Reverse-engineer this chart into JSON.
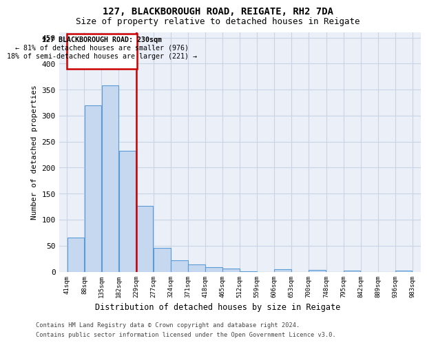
{
  "title1": "127, BLACKBOROUGH ROAD, REIGATE, RH2 7DA",
  "title2": "Size of property relative to detached houses in Reigate",
  "xlabel": "Distribution of detached houses by size in Reigate",
  "ylabel": "Number of detached properties",
  "bar_values": [
    65,
    320,
    358,
    232,
    127,
    46,
    22,
    14,
    9,
    6,
    1,
    0,
    4,
    0,
    3,
    0,
    2,
    0,
    0,
    2
  ],
  "bar_labels": [
    "41sqm",
    "88sqm",
    "135sqm",
    "182sqm",
    "229sqm",
    "277sqm",
    "324sqm",
    "371sqm",
    "418sqm",
    "465sqm",
    "512sqm",
    "559sqm",
    "606sqm",
    "653sqm",
    "700sqm",
    "748sqm",
    "795sqm",
    "842sqm",
    "889sqm",
    "936sqm",
    "983sqm"
  ],
  "bar_color": "#c5d8f0",
  "bar_edge_color": "#5b9bd5",
  "vline_x": 230,
  "vline_color": "#cc0000",
  "annotation_line1": "127 BLACKBOROUGH ROAD: 230sqm",
  "annotation_line2": "← 81% of detached houses are smaller (976)",
  "annotation_line3": "18% of semi-detached houses are larger (221) →",
  "annotation_box_edgecolor": "#cc0000",
  "ylim_max": 460,
  "yticks": [
    0,
    50,
    100,
    150,
    200,
    250,
    300,
    350,
    400,
    450
  ],
  "grid_color": "#c8d4e5",
  "bg_color": "#eaeff8",
  "footer1": "Contains HM Land Registry data © Crown copyright and database right 2024.",
  "footer2": "Contains public sector information licensed under the Open Government Licence v3.0.",
  "bin_width": 47,
  "bins_start": [
    41,
    88,
    135,
    182,
    229,
    277,
    324,
    371,
    418,
    465,
    512,
    559,
    606,
    653,
    700,
    748,
    795,
    842,
    889,
    936
  ]
}
